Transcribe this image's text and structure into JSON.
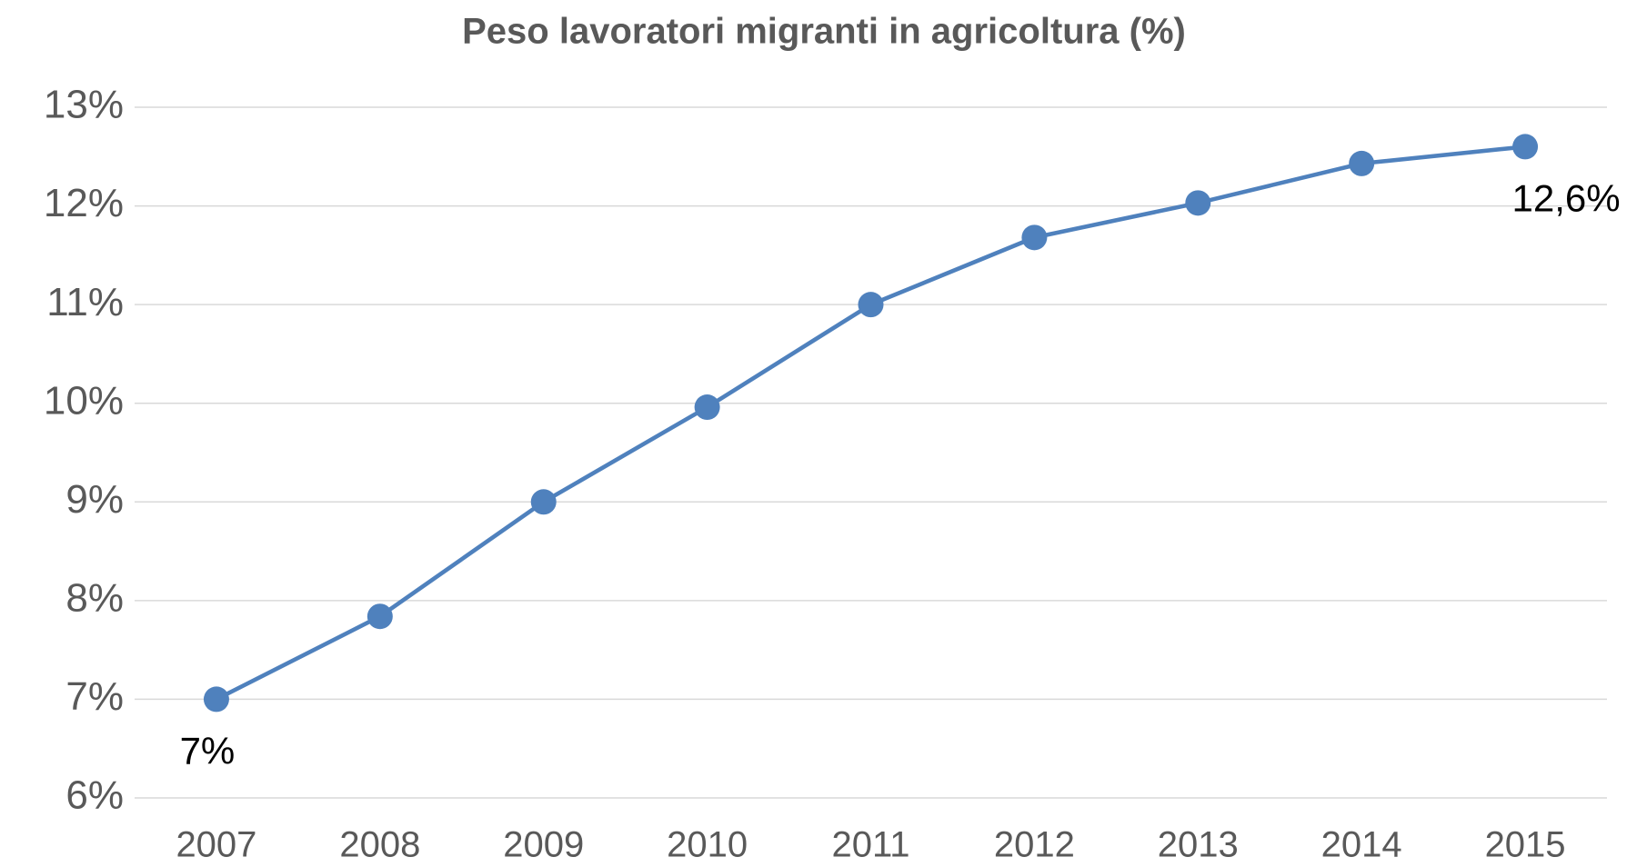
{
  "chart_data": {
    "type": "line",
    "title": "Peso lavoratori migranti in agricoltura (%)",
    "categories": [
      "2007",
      "2008",
      "2009",
      "2010",
      "2011",
      "2012",
      "2013",
      "2014",
      "2015"
    ],
    "series": [
      {
        "name": "Peso lavoratori migranti in agricoltura",
        "color": "#4f81bd",
        "values": [
          7,
          7.84,
          9.0,
          9.96,
          11.0,
          11.68,
          12.03,
          12.43,
          12.6
        ],
        "value_labels": [
          "7%",
          null,
          null,
          null,
          null,
          null,
          null,
          null,
          "12,6%"
        ]
      }
    ],
    "ylim": [
      6,
      13
    ],
    "yticks": [
      {
        "value": 6,
        "label": "6%"
      },
      {
        "value": 7,
        "label": "7%"
      },
      {
        "value": 8,
        "label": "8%"
      },
      {
        "value": 9,
        "label": "9%"
      },
      {
        "value": 10,
        "label": "10%"
      },
      {
        "value": 11,
        "label": "11%"
      },
      {
        "value": 12,
        "label": "12%"
      },
      {
        "value": 13,
        "label": "13%"
      }
    ],
    "grid": true
  }
}
